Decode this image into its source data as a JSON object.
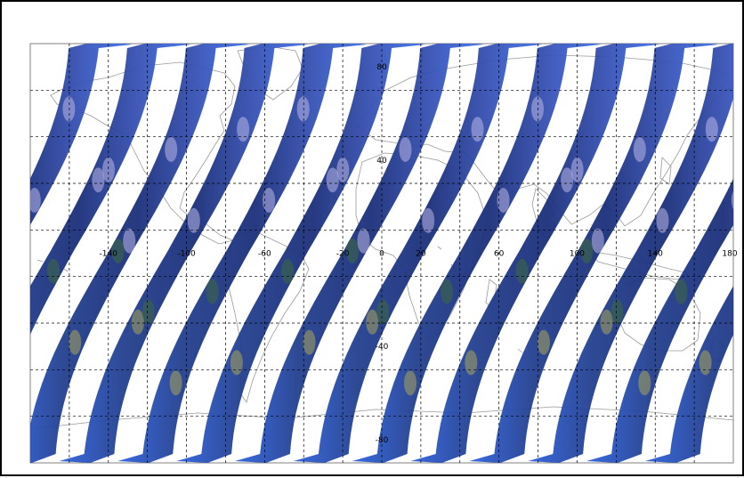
{
  "map": {
    "lon_labels": [
      "-140",
      "-100",
      "-60",
      "-20",
      "0",
      "20",
      "60",
      "100",
      "140",
      "180"
    ],
    "lat_labels": [
      "80",
      "40",
      "-40",
      "-80"
    ],
    "lon_label_values": [
      -140,
      -100,
      -60,
      -20,
      0,
      20,
      60,
      100,
      140,
      180
    ],
    "lat_label_values": [
      80,
      40,
      -40,
      -80
    ],
    "lon_range": [
      -180,
      180
    ],
    "lat_range": [
      -90,
      90
    ],
    "grid_step_lon": 20,
    "grid_step_lat": 20,
    "grid": "dashed",
    "coastlines": "gray",
    "swath_count": 14,
    "colors": {
      "background": "#ffffff",
      "frame": "#000000",
      "grid": "#000000",
      "coastline": "#9a9a9a",
      "swath_ocean": "#1f3b8f",
      "swath_edge": "#2f63e0",
      "swath_cloud": "#b9b7e6",
      "swath_land_desert": "#a9a55a",
      "swath_land_vegetation": "#3e6a3c"
    }
  }
}
